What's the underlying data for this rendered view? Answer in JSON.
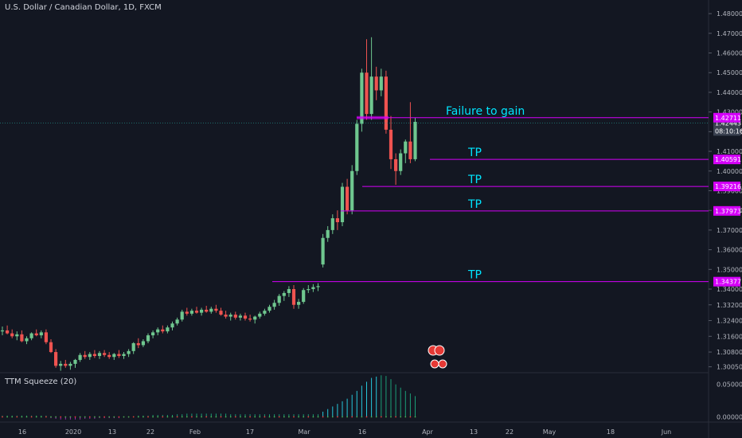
{
  "header": {
    "title": "U.S. Dollar / Canadian Dollar, 1D, FXCM"
  },
  "indicator": {
    "label": "TTM Squeeze (20)"
  },
  "colors": {
    "background": "#131722",
    "up": "#6fc78f",
    "down": "#ef5350",
    "level": "#d500f9",
    "annotation": "#00e5ff",
    "price_tag": "#3a4150",
    "axis_text": "#b2b5be",
    "grid": "#2a2e39"
  },
  "chart_data": {
    "type": "candlestick",
    "price_axis": {
      "ticks": [
        "1.48000",
        "1.47000",
        "1.46000",
        "1.45000",
        "1.44000",
        "1.43000",
        "1.42000",
        "1.41000",
        "1.40000",
        "1.39000",
        "1.38000",
        "1.37000",
        "1.36000",
        "1.35000",
        "1.34000",
        "1.33200",
        "1.32400",
        "1.31600",
        "1.30800",
        "1.30050"
      ],
      "range": [
        1.2975,
        1.4845
      ]
    },
    "time_axis": {
      "ticks": [
        "16",
        "2020",
        "13",
        "22",
        "Feb",
        "17",
        "Mar",
        "16",
        "Apr",
        "13",
        "22",
        "May",
        "18",
        "Jun"
      ]
    },
    "current_price": {
      "value": "1.42443",
      "countdown": "08:10:16"
    },
    "levels": [
      {
        "price": 1.42711,
        "label": "1.42711",
        "annotation": "Failure to gain"
      },
      {
        "price": 1.40591,
        "label": "1.40591",
        "annotation": "TP"
      },
      {
        "price": 1.39216,
        "label": "1.39216",
        "annotation": "TP"
      },
      {
        "price": 1.37973,
        "label": "1.37973",
        "annotation": "TP"
      },
      {
        "price": 1.34377,
        "label": "1.34377",
        "annotation": "TP"
      }
    ],
    "candles": [
      {
        "o": 1.3185,
        "h": 1.321,
        "l": 1.3165,
        "c": 1.319
      },
      {
        "o": 1.319,
        "h": 1.3215,
        "l": 1.317,
        "c": 1.3175
      },
      {
        "o": 1.3175,
        "h": 1.3195,
        "l": 1.315,
        "c": 1.316
      },
      {
        "o": 1.316,
        "h": 1.3185,
        "l": 1.314,
        "c": 1.317
      },
      {
        "o": 1.317,
        "h": 1.319,
        "l": 1.313,
        "c": 1.3135
      },
      {
        "o": 1.3135,
        "h": 1.316,
        "l": 1.312,
        "c": 1.315
      },
      {
        "o": 1.315,
        "h": 1.318,
        "l": 1.314,
        "c": 1.3175
      },
      {
        "o": 1.3175,
        "h": 1.3195,
        "l": 1.316,
        "c": 1.3165
      },
      {
        "o": 1.3165,
        "h": 1.319,
        "l": 1.315,
        "c": 1.318
      },
      {
        "o": 1.318,
        "h": 1.3195,
        "l": 1.312,
        "c": 1.313
      },
      {
        "o": 1.313,
        "h": 1.3145,
        "l": 1.3075,
        "c": 1.308
      },
      {
        "o": 1.308,
        "h": 1.3095,
        "l": 1.3,
        "c": 1.301
      },
      {
        "o": 1.301,
        "h": 1.3035,
        "l": 1.2985,
        "c": 1.302
      },
      {
        "o": 1.302,
        "h": 1.304,
        "l": 1.3,
        "c": 1.301
      },
      {
        "o": 1.301,
        "h": 1.303,
        "l": 1.299,
        "c": 1.302
      },
      {
        "o": 1.302,
        "h": 1.3045,
        "l": 1.3,
        "c": 1.304
      },
      {
        "o": 1.304,
        "h": 1.3075,
        "l": 1.303,
        "c": 1.3065
      },
      {
        "o": 1.3065,
        "h": 1.3085,
        "l": 1.3045,
        "c": 1.3055
      },
      {
        "o": 1.3055,
        "h": 1.308,
        "l": 1.304,
        "c": 1.307
      },
      {
        "o": 1.307,
        "h": 1.309,
        "l": 1.305,
        "c": 1.306
      },
      {
        "o": 1.306,
        "h": 1.3085,
        "l": 1.3045,
        "c": 1.3075
      },
      {
        "o": 1.3075,
        "h": 1.309,
        "l": 1.3055,
        "c": 1.3065
      },
      {
        "o": 1.3065,
        "h": 1.308,
        "l": 1.3045,
        "c": 1.3055
      },
      {
        "o": 1.3055,
        "h": 1.3075,
        "l": 1.304,
        "c": 1.307
      },
      {
        "o": 1.307,
        "h": 1.309,
        "l": 1.305,
        "c": 1.306
      },
      {
        "o": 1.306,
        "h": 1.308,
        "l": 1.3045,
        "c": 1.307
      },
      {
        "o": 1.307,
        "h": 1.3095,
        "l": 1.3055,
        "c": 1.3085
      },
      {
        "o": 1.3085,
        "h": 1.313,
        "l": 1.307,
        "c": 1.3125
      },
      {
        "o": 1.3125,
        "h": 1.315,
        "l": 1.31,
        "c": 1.3115
      },
      {
        "o": 1.3115,
        "h": 1.3145,
        "l": 1.3105,
        "c": 1.3135
      },
      {
        "o": 1.3135,
        "h": 1.3175,
        "l": 1.3125,
        "c": 1.3165
      },
      {
        "o": 1.3165,
        "h": 1.319,
        "l": 1.315,
        "c": 1.318
      },
      {
        "o": 1.318,
        "h": 1.3205,
        "l": 1.3165,
        "c": 1.3195
      },
      {
        "o": 1.3195,
        "h": 1.3215,
        "l": 1.3175,
        "c": 1.3185
      },
      {
        "o": 1.3185,
        "h": 1.3215,
        "l": 1.3175,
        "c": 1.3205
      },
      {
        "o": 1.3205,
        "h": 1.3235,
        "l": 1.319,
        "c": 1.3225
      },
      {
        "o": 1.3225,
        "h": 1.3255,
        "l": 1.3215,
        "c": 1.3245
      },
      {
        "o": 1.3245,
        "h": 1.3295,
        "l": 1.3235,
        "c": 1.3285
      },
      {
        "o": 1.3285,
        "h": 1.3305,
        "l": 1.3265,
        "c": 1.3275
      },
      {
        "o": 1.3275,
        "h": 1.33,
        "l": 1.3265,
        "c": 1.329
      },
      {
        "o": 1.329,
        "h": 1.331,
        "l": 1.3275,
        "c": 1.328
      },
      {
        "o": 1.328,
        "h": 1.3305,
        "l": 1.3265,
        "c": 1.3295
      },
      {
        "o": 1.3295,
        "h": 1.3315,
        "l": 1.328,
        "c": 1.3285
      },
      {
        "o": 1.3285,
        "h": 1.331,
        "l": 1.3275,
        "c": 1.33
      },
      {
        "o": 1.33,
        "h": 1.332,
        "l": 1.328,
        "c": 1.329
      },
      {
        "o": 1.329,
        "h": 1.3305,
        "l": 1.3265,
        "c": 1.327
      },
      {
        "o": 1.327,
        "h": 1.329,
        "l": 1.325,
        "c": 1.326
      },
      {
        "o": 1.326,
        "h": 1.328,
        "l": 1.324,
        "c": 1.327
      },
      {
        "o": 1.327,
        "h": 1.3285,
        "l": 1.3245,
        "c": 1.3255
      },
      {
        "o": 1.3255,
        "h": 1.3275,
        "l": 1.324,
        "c": 1.3265
      },
      {
        "o": 1.3265,
        "h": 1.328,
        "l": 1.324,
        "c": 1.325
      },
      {
        "o": 1.325,
        "h": 1.327,
        "l": 1.3235,
        "c": 1.3245
      },
      {
        "o": 1.3245,
        "h": 1.3265,
        "l": 1.3225,
        "c": 1.326
      },
      {
        "o": 1.326,
        "h": 1.3285,
        "l": 1.325,
        "c": 1.3275
      },
      {
        "o": 1.3275,
        "h": 1.33,
        "l": 1.3265,
        "c": 1.329
      },
      {
        "o": 1.329,
        "h": 1.332,
        "l": 1.328,
        "c": 1.331
      },
      {
        "o": 1.331,
        "h": 1.3345,
        "l": 1.3295,
        "c": 1.333
      },
      {
        "o": 1.333,
        "h": 1.3375,
        "l": 1.3315,
        "c": 1.3365
      },
      {
        "o": 1.3365,
        "h": 1.339,
        "l": 1.334,
        "c": 1.338
      },
      {
        "o": 1.338,
        "h": 1.3415,
        "l": 1.336,
        "c": 1.34
      },
      {
        "o": 1.34,
        "h": 1.342,
        "l": 1.33,
        "c": 1.332
      },
      {
        "o": 1.332,
        "h": 1.335,
        "l": 1.33,
        "c": 1.3335
      },
      {
        "o": 1.3335,
        "h": 1.3405,
        "l": 1.3325,
        "c": 1.3395
      },
      {
        "o": 1.3395,
        "h": 1.342,
        "l": 1.338,
        "c": 1.34
      },
      {
        "o": 1.34,
        "h": 1.3425,
        "l": 1.3385,
        "c": 1.341
      },
      {
        "o": 1.341,
        "h": 1.343,
        "l": 1.339,
        "c": 1.3415
      },
      {
        "o": 1.3525,
        "h": 1.368,
        "l": 1.351,
        "c": 1.366
      },
      {
        "o": 1.366,
        "h": 1.372,
        "l": 1.364,
        "c": 1.37
      },
      {
        "o": 1.37,
        "h": 1.378,
        "l": 1.368,
        "c": 1.376
      },
      {
        "o": 1.376,
        "h": 1.38,
        "l": 1.37,
        "c": 1.374
      },
      {
        "o": 1.374,
        "h": 1.394,
        "l": 1.372,
        "c": 1.392
      },
      {
        "o": 1.392,
        "h": 1.396,
        "l": 1.378,
        "c": 1.38
      },
      {
        "o": 1.38,
        "h": 1.403,
        "l": 1.378,
        "c": 1.4
      },
      {
        "o": 1.4,
        "h": 1.426,
        "l": 1.398,
        "c": 1.424
      },
      {
        "o": 1.424,
        "h": 1.452,
        "l": 1.42,
        "c": 1.45
      },
      {
        "o": 1.45,
        "h": 1.467,
        "l": 1.426,
        "c": 1.429
      },
      {
        "o": 1.429,
        "h": 1.468,
        "l": 1.426,
        "c": 1.448
      },
      {
        "o": 1.448,
        "h": 1.453,
        "l": 1.436,
        "c": 1.441
      },
      {
        "o": 1.441,
        "h": 1.452,
        "l": 1.438,
        "c": 1.448
      },
      {
        "o": 1.448,
        "h": 1.451,
        "l": 1.419,
        "c": 1.421
      },
      {
        "o": 1.421,
        "h": 1.428,
        "l": 1.401,
        "c": 1.406
      },
      {
        "o": 1.406,
        "h": 1.409,
        "l": 1.393,
        "c": 1.4
      },
      {
        "o": 1.4,
        "h": 1.411,
        "l": 1.398,
        "c": 1.409
      },
      {
        "o": 1.409,
        "h": 1.416,
        "l": 1.404,
        "c": 1.415
      },
      {
        "o": 1.415,
        "h": 1.435,
        "l": 1.404,
        "c": 1.406
      },
      {
        "o": 1.406,
        "h": 1.427,
        "l": 1.405,
        "c": 1.425
      }
    ],
    "squeeze": {
      "ticks": [
        "0.05000",
        "0.00000"
      ],
      "range": [
        -0.008,
        0.068
      ],
      "values": [
        0.002,
        0.002,
        0.002,
        0.002,
        0.002,
        0.002,
        0.002,
        0.002,
        0.002,
        0.002,
        -0.002,
        -0.003,
        -0.004,
        -0.004,
        -0.004,
        -0.004,
        -0.004,
        -0.003,
        -0.003,
        -0.003,
        -0.002,
        -0.002,
        -0.002,
        -0.002,
        -0.002,
        -0.001,
        -0.001,
        0.001,
        0.002,
        0.002,
        0.002,
        0.003,
        0.003,
        0.003,
        0.003,
        0.003,
        0.004,
        0.004,
        0.005,
        0.005,
        0.005,
        0.005,
        0.005,
        0.005,
        0.005,
        0.005,
        0.005,
        0.004,
        0.004,
        0.004,
        0.004,
        0.004,
        0.004,
        0.004,
        0.004,
        0.004,
        0.004,
        0.004,
        0.004,
        0.004,
        0.004,
        0.004,
        0.004,
        0.004,
        0.004,
        0.004,
        0.008,
        0.012,
        0.016,
        0.02,
        0.024,
        0.028,
        0.034,
        0.04,
        0.048,
        0.054,
        0.06,
        0.062,
        0.064,
        0.063,
        0.058,
        0.05,
        0.045,
        0.04,
        0.036,
        0.032
      ],
      "dots": "mixed"
    }
  }
}
